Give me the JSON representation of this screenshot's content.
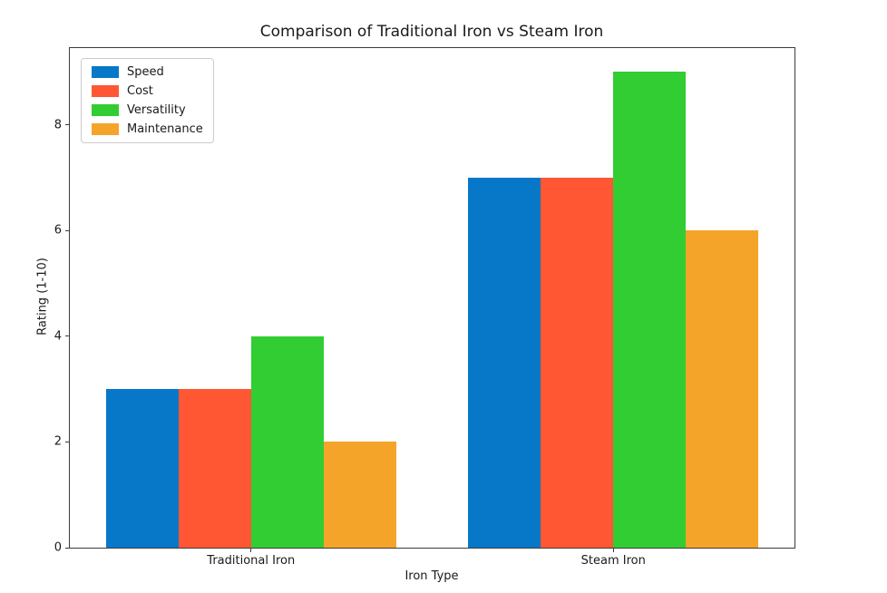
{
  "chart_data": {
    "type": "bar",
    "title": "Comparison of Traditional Iron vs Steam Iron",
    "xlabel": "Iron Type",
    "ylabel": "Rating (1-10)",
    "categories": [
      "Traditional Iron",
      "Steam Iron"
    ],
    "series": [
      {
        "name": "Speed",
        "color": "#0778c8",
        "values": [
          3,
          7
        ]
      },
      {
        "name": "Cost",
        "color": "#ff5733",
        "values": [
          3,
          7
        ]
      },
      {
        "name": "Versatility",
        "color": "#32cd32",
        "values": [
          4,
          9
        ]
      },
      {
        "name": "Maintenance",
        "color": "#f5a42a",
        "values": [
          2,
          6
        ]
      }
    ],
    "x_positions": [
      0,
      1
    ],
    "group_offsets": [
      -0.3,
      -0.1,
      0.1,
      0.3
    ],
    "bar_width": 0.2,
    "xlim": [
      -0.5,
      1.5
    ],
    "ylim": [
      0,
      9.45
    ],
    "yticks": [
      0,
      2,
      4,
      6,
      8
    ],
    "grid": false,
    "legend_position": "upper-left",
    "background_color": "#ffffff",
    "spine_color": "#3c3c3c"
  }
}
